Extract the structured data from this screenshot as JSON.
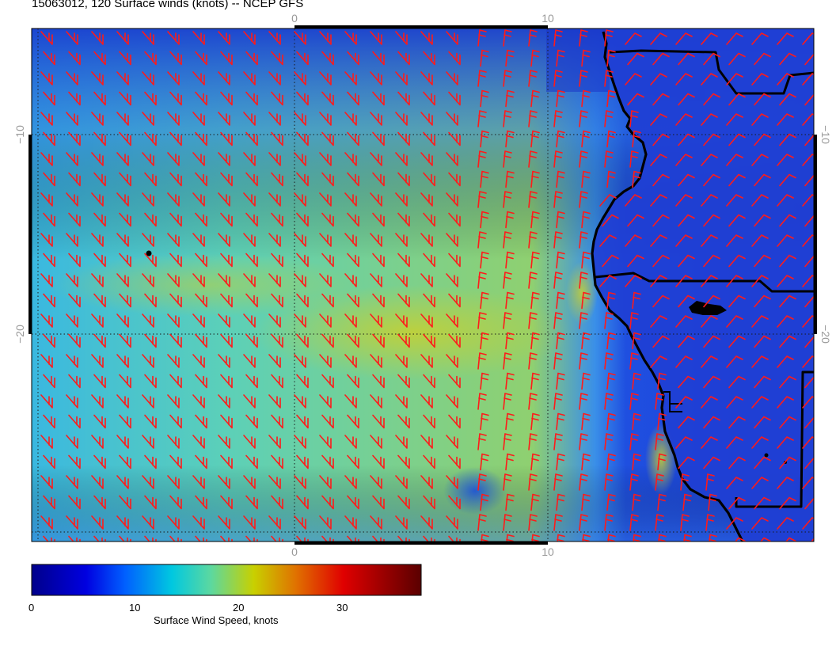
{
  "header": {
    "title": "15063012, 120 Surface winds (knots) -- NCEP GFS"
  },
  "map": {
    "top_lon_ticks": [
      "0",
      "10"
    ],
    "bottom_lon_ticks": [
      "0",
      "10"
    ],
    "left_lat_ticks": [
      "−10",
      "−20"
    ],
    "right_lat_ticks": [
      "−10",
      "−20"
    ],
    "barb_color": "#ff1a1a",
    "coast_color": "#000000",
    "grid_style": "dotted"
  },
  "colorbar": {
    "label": "Surface Wind Speed, knots",
    "ticks": [
      "0",
      "10",
      "20",
      "30"
    ],
    "range": [
      0,
      38
    ],
    "colors": [
      "#00008b",
      "#0000ff",
      "#0066ff",
      "#00ccdd",
      "#66dd88",
      "#cccc00",
      "#dd6600",
      "#dd0000",
      "#5a0000"
    ]
  }
}
